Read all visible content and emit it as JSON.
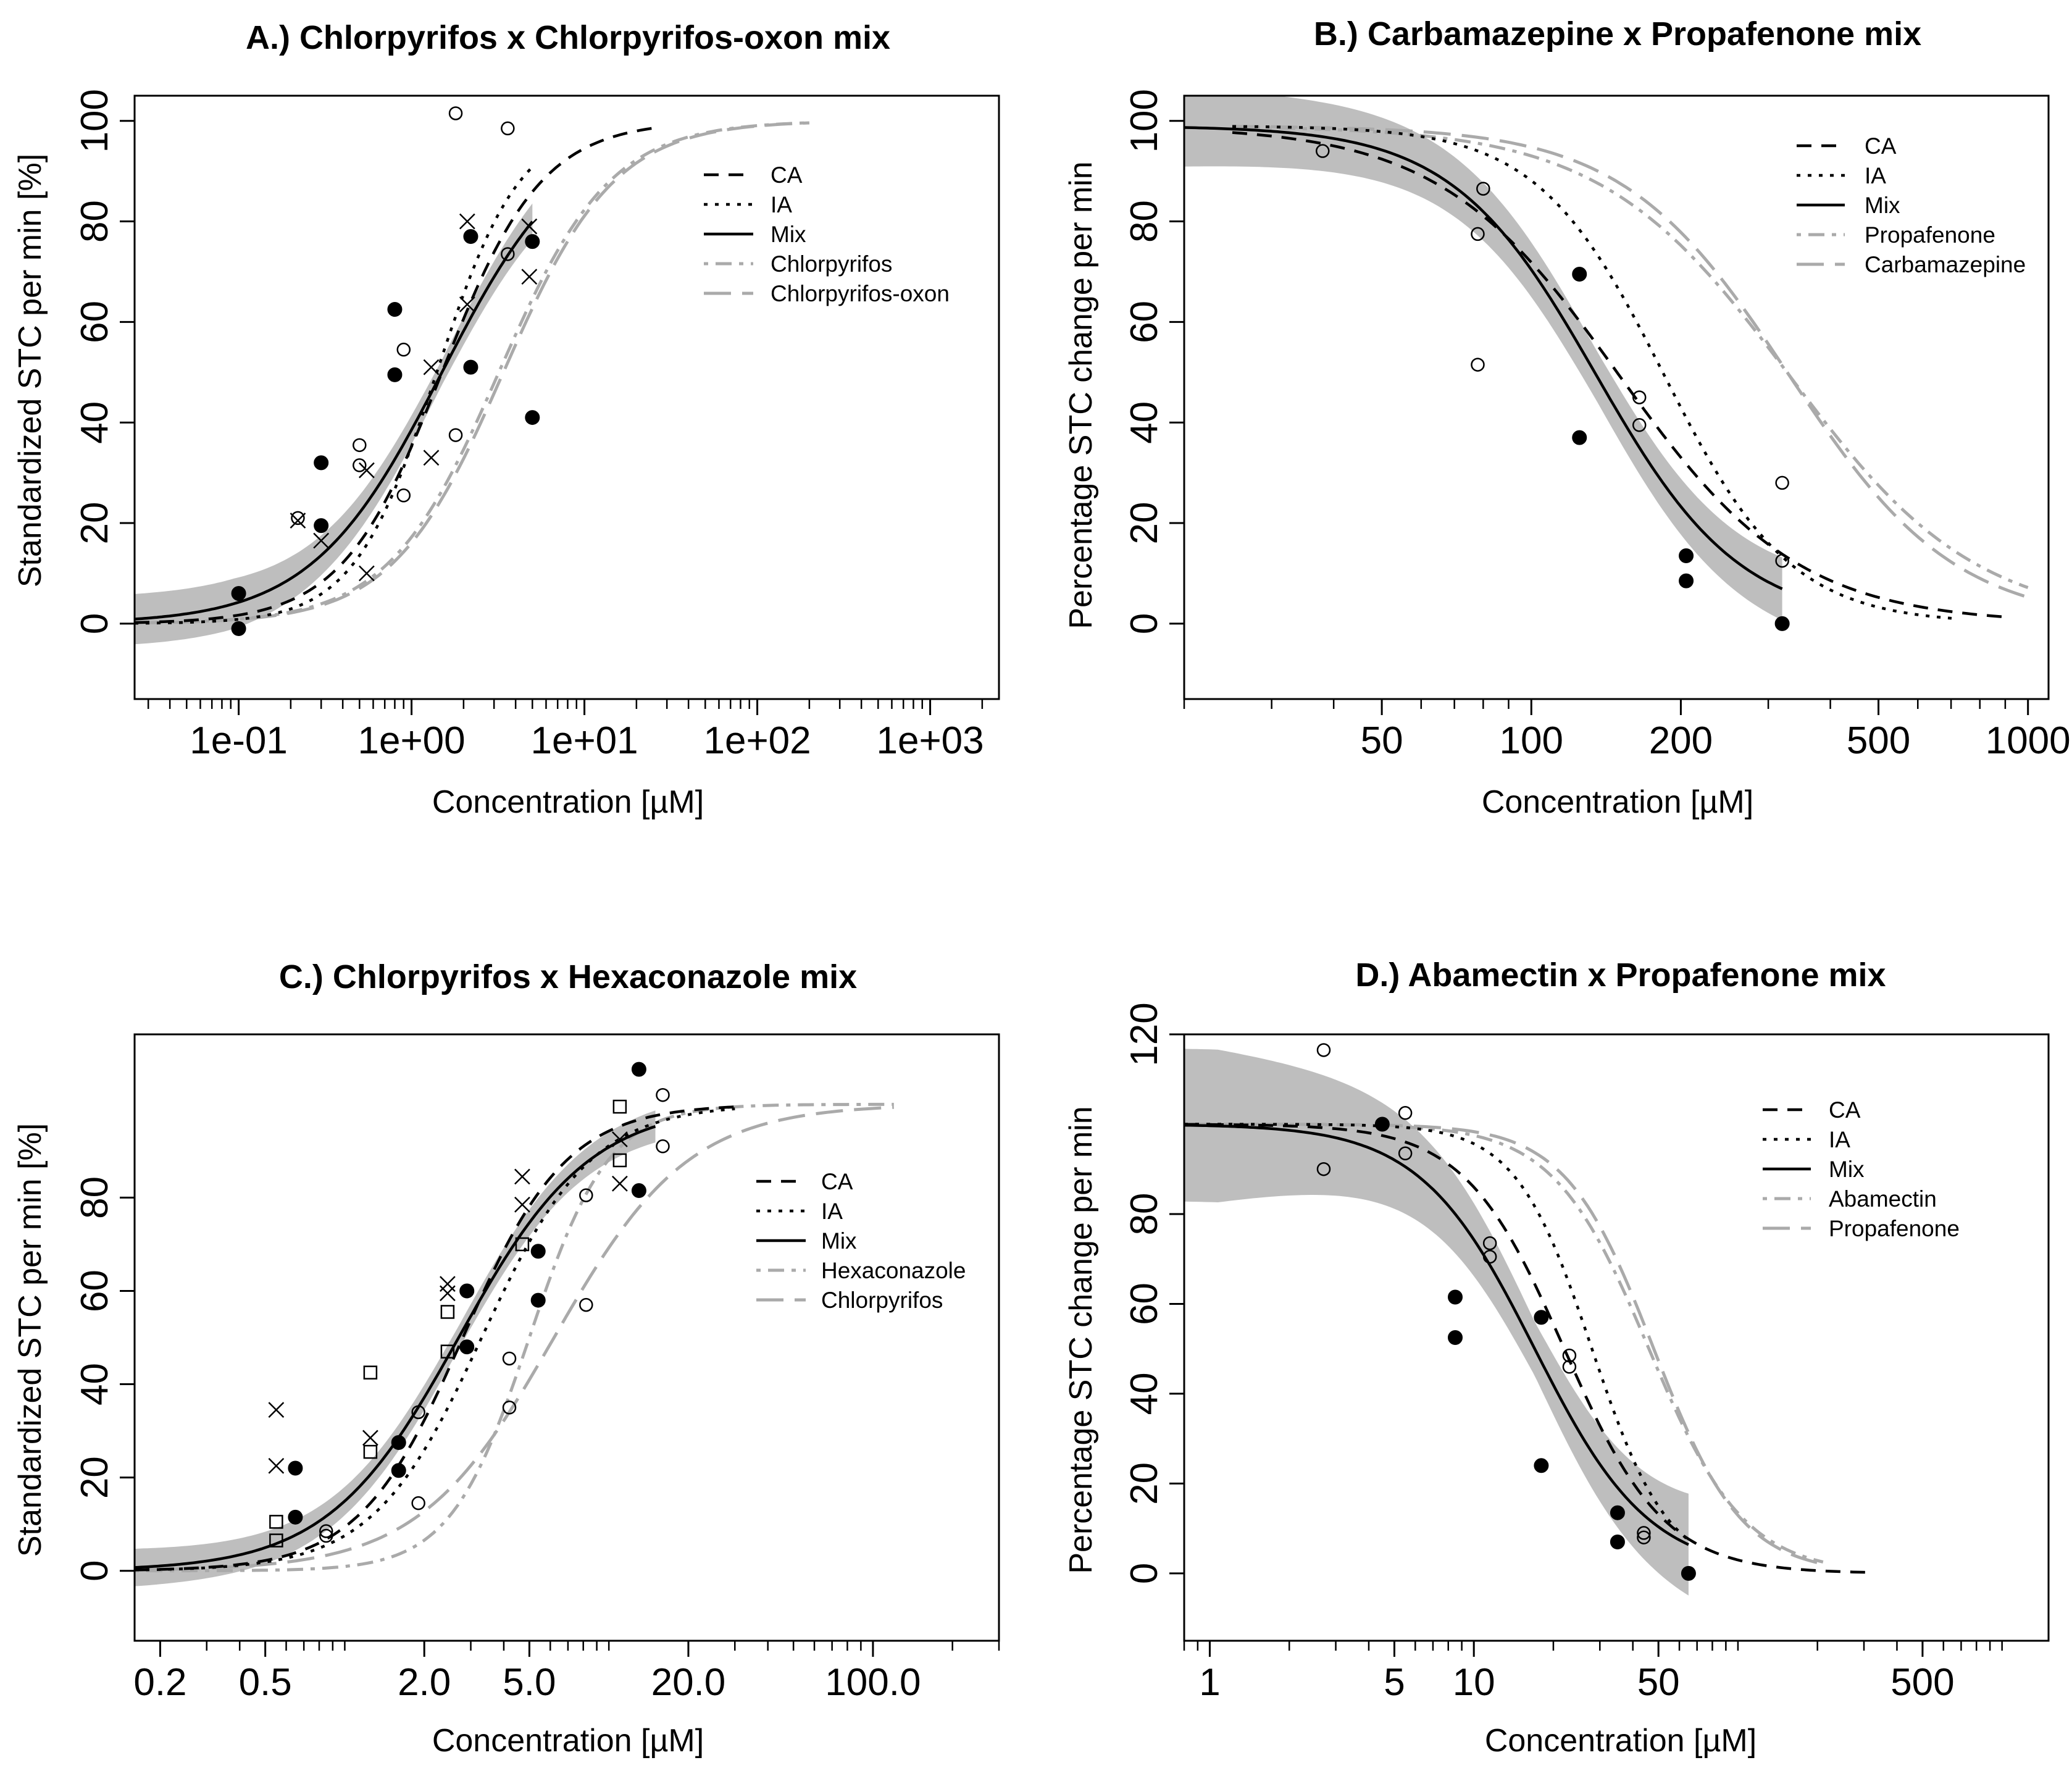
{
  "chart_data": [
    {
      "id": "A",
      "type": "line",
      "title": "A.) Chlorpyrifos x Chlorpyrifos-oxon mix",
      "xlabel": "Concentration [µM]",
      "ylabel": "Standardized STC per min [%]",
      "xscale": "log",
      "xlim": [
        0.025,
        2500
      ],
      "ylim": [
        -15,
        105
      ],
      "xticks": [
        {
          "v": 0.1,
          "label": "1e-01"
        },
        {
          "v": 1,
          "label": "1e+00"
        },
        {
          "v": 10,
          "label": "1e+01"
        },
        {
          "v": 100,
          "label": "1e+02"
        },
        {
          "v": 1000,
          "label": "1e+03"
        }
      ],
      "yticks": [
        {
          "v": 0,
          "label": "0"
        },
        {
          "v": 20,
          "label": "20"
        },
        {
          "v": 40,
          "label": "40"
        },
        {
          "v": 60,
          "label": "60"
        },
        {
          "v": 80,
          "label": "80"
        },
        {
          "v": 100,
          "label": "100"
        }
      ],
      "legend_position": "top-right",
      "legend": [
        {
          "label": "CA",
          "style": "dashed",
          "color": "#000000"
        },
        {
          "label": "IA",
          "style": "dotted",
          "color": "#000000"
        },
        {
          "label": "Mix",
          "style": "solid",
          "color": "#000000"
        },
        {
          "label": "Chlorpyrifos",
          "style": "dotdash",
          "color": "#aaaaaa"
        },
        {
          "label": "Chlorpyrifos-oxon",
          "style": "longdash",
          "color": "#aaaaaa"
        }
      ],
      "direction": "increasing",
      "band": {
        "ec50": 1.5,
        "top": 100,
        "hill": 1.15,
        "xmin": 0.025,
        "xmax": 5.0,
        "width_at_ends": 5,
        "width_mid": 2.5
      },
      "curves": [
        {
          "name": "Mix",
          "style": "solid",
          "color": "#000000",
          "ec50": 1.5,
          "hill": 1.15,
          "top": 100,
          "xmin": 0.025,
          "xmax": 5.0
        },
        {
          "name": "CA",
          "style": "dashed",
          "color": "#000000",
          "ec50": 1.5,
          "hill": 1.5,
          "top": 100,
          "xmin": 0.025,
          "xmax": 25
        },
        {
          "name": "IA",
          "style": "dotted",
          "color": "#000000",
          "ec50": 1.4,
          "hill": 1.8,
          "top": 100,
          "xmin": 0.025,
          "xmax": 5.0
        },
        {
          "name": "Chlorpyrifos",
          "style": "dotdash",
          "color": "#aaaaaa",
          "ec50": 3.2,
          "hill": 1.35,
          "top": 100,
          "xmin": 0.025,
          "xmax": 200
        },
        {
          "name": "Chlorpyrifos-oxon",
          "style": "longdash",
          "color": "#aaaaaa",
          "ec50": 3.4,
          "hill": 1.35,
          "top": 100,
          "xmin": 0.025,
          "xmax": 200
        }
      ],
      "points": [
        {
          "marker": "filled",
          "data": [
            [
              0.1,
              -1
            ],
            [
              0.1,
              6
            ],
            [
              0.3,
              32
            ],
            [
              0.3,
              19.5
            ],
            [
              0.8,
              62.5
            ],
            [
              0.8,
              49.5
            ],
            [
              2.2,
              77
            ],
            [
              2.2,
              51
            ],
            [
              5,
              76
            ],
            [
              5,
              41
            ]
          ]
        },
        {
          "marker": "open",
          "data": [
            [
              0.22,
              21
            ],
            [
              0.5,
              35.5
            ],
            [
              0.5,
              31.5
            ],
            [
              0.9,
              54.5
            ],
            [
              0.9,
              25.5
            ],
            [
              1.8,
              101.5
            ],
            [
              1.8,
              37.5
            ],
            [
              3.6,
              98.5
            ],
            [
              3.6,
              73.5
            ]
          ]
        },
        {
          "marker": "cross",
          "data": [
            [
              0.22,
              20.5
            ],
            [
              0.3,
              16.5
            ],
            [
              0.55,
              30.5
            ],
            [
              0.55,
              10
            ],
            [
              1.3,
              51
            ],
            [
              1.3,
              33
            ],
            [
              2.1,
              80
            ],
            [
              2.1,
              63.5
            ],
            [
              4.8,
              79
            ],
            [
              4.8,
              69
            ]
          ]
        }
      ]
    },
    {
      "id": "B",
      "type": "line",
      "title": "B.) Carbamazepine x Propafenone mix",
      "xlabel": "Concentration [µM]",
      "ylabel": "Percentage STC change per min",
      "xscale": "log",
      "xlim": [
        20,
        1100
      ],
      "ylim": [
        -15,
        105
      ],
      "xticks": [
        {
          "v": 50,
          "label": "50"
        },
        {
          "v": 100,
          "label": "100"
        },
        {
          "v": 200,
          "label": "200"
        },
        {
          "v": 500,
          "label": "500"
        },
        {
          "v": 1000,
          "label": "1000"
        }
      ],
      "yticks": [
        {
          "v": 0,
          "label": "0"
        },
        {
          "v": 20,
          "label": "20"
        },
        {
          "v": 40,
          "label": "40"
        },
        {
          "v": 60,
          "label": "60"
        },
        {
          "v": 80,
          "label": "80"
        },
        {
          "v": 100,
          "label": "100"
        }
      ],
      "legend_position": "top-right",
      "legend": [
        {
          "label": "CA",
          "style": "dashed",
          "color": "#000000"
        },
        {
          "label": "IA",
          "style": "dotted",
          "color": "#000000"
        },
        {
          "label": "Mix",
          "style": "solid",
          "color": "#000000"
        },
        {
          "label": "Propafenone",
          "style": "dotdash",
          "color": "#aaaaaa"
        },
        {
          "label": "Carbamazepine",
          "style": "longdash",
          "color": "#aaaaaa"
        }
      ],
      "direction": "decreasing",
      "band": {
        "ec50": 135,
        "top": 99,
        "hill": 3.0,
        "xmin": 20,
        "xmax": 320,
        "width_at_ends": 9,
        "width_mid": 5
      },
      "curves": [
        {
          "name": "Mix",
          "style": "solid",
          "color": "#000000",
          "ec50": 135,
          "hill": 3.0,
          "top": 99,
          "xmin": 20,
          "xmax": 320
        },
        {
          "name": "CA",
          "style": "dashed",
          "color": "#000000",
          "ec50": 150,
          "hill": 2.4,
          "top": 99,
          "xmin": 25,
          "xmax": 900
        },
        {
          "name": "IA",
          "style": "dotted",
          "color": "#000000",
          "ec50": 185,
          "hill": 3.4,
          "top": 99,
          "xmin": 25,
          "xmax": 720
        },
        {
          "name": "Propafenone",
          "style": "dotdash",
          "color": "#aaaaaa",
          "ec50": 330,
          "hill": 2.3,
          "top": 99,
          "xmin": 25,
          "xmax": 1000
        },
        {
          "name": "Carbamazepine",
          "style": "longdash",
          "color": "#aaaaaa",
          "ec50": 330,
          "hill": 2.6,
          "top": 99,
          "xmin": 25,
          "xmax": 1000
        }
      ],
      "points": [
        {
          "marker": "filled",
          "data": [
            [
              125,
              69.5
            ],
            [
              125,
              37
            ],
            [
              205,
              13.5
            ],
            [
              205,
              8.5
            ],
            [
              320,
              0
            ]
          ]
        },
        {
          "marker": "open",
          "data": [
            [
              38,
              94
            ],
            [
              80,
              86.5
            ],
            [
              78,
              77.5
            ],
            [
              78,
              51.5
            ],
            [
              165,
              45
            ],
            [
              165,
              39.5
            ],
            [
              320,
              28
            ],
            [
              320,
              12.5
            ]
          ]
        }
      ]
    },
    {
      "id": "C",
      "type": "line",
      "title": "C.) Chlorpyrifos x Hexaconazole mix",
      "xlabel": "Concentration [µM]",
      "ylabel": "Standardized STC per min [%]",
      "xscale": "log",
      "xlim": [
        0.16,
        300
      ],
      "ylim": [
        -15,
        115
      ],
      "xticks": [
        {
          "v": 0.2,
          "label": "0.2"
        },
        {
          "v": 0.5,
          "label": "0.5"
        },
        {
          "v": 2,
          "label": "2.0"
        },
        {
          "v": 5,
          "label": "5.0"
        },
        {
          "v": 20,
          "label": "20.0"
        },
        {
          "v": 100,
          "label": "100.0"
        }
      ],
      "yticks": [
        {
          "v": 0,
          "label": "0"
        },
        {
          "v": 20,
          "label": "20"
        },
        {
          "v": 40,
          "label": "40"
        },
        {
          "v": 60,
          "label": "60"
        },
        {
          "v": 80,
          "label": "80"
        }
      ],
      "legend_position": "right",
      "legend": [
        {
          "label": "CA",
          "style": "dashed",
          "color": "#000000"
        },
        {
          "label": "IA",
          "style": "dotted",
          "color": "#000000"
        },
        {
          "label": "Mix",
          "style": "solid",
          "color": "#000000"
        },
        {
          "label": "Hexaconazole",
          "style": "dotdash",
          "color": "#aaaaaa"
        },
        {
          "label": "Chlorpyrifos",
          "style": "longdash",
          "color": "#aaaaaa"
        }
      ],
      "direction": "increasing",
      "band": {
        "ec50": 2.7,
        "top": 100,
        "hill": 1.75,
        "xmin": 0.16,
        "xmax": 15,
        "width_at_ends": 4,
        "width_mid": 2.5
      },
      "curves": [
        {
          "name": "Mix",
          "style": "solid",
          "color": "#000000",
          "ec50": 2.7,
          "hill": 1.75,
          "top": 100,
          "xmin": 0.16,
          "xmax": 15
        },
        {
          "name": "CA",
          "style": "dashed",
          "color": "#000000",
          "ec50": 2.8,
          "hill": 2.2,
          "top": 100,
          "xmin": 0.16,
          "xmax": 30
        },
        {
          "name": "IA",
          "style": "dotted",
          "color": "#000000",
          "ec50": 3.3,
          "hill": 2.1,
          "top": 100,
          "xmin": 0.16,
          "xmax": 30
        },
        {
          "name": "Hexaconazole",
          "style": "dotdash",
          "color": "#aaaaaa",
          "ec50": 5.0,
          "hill": 2.9,
          "top": 100,
          "xmin": 0.16,
          "xmax": 120
        },
        {
          "name": "Chlorpyrifos",
          "style": "longdash",
          "color": "#aaaaaa",
          "ec50": 6.2,
          "hill": 1.7,
          "top": 100,
          "xmin": 0.16,
          "xmax": 120
        }
      ],
      "points": [
        {
          "marker": "filled",
          "data": [
            [
              0.65,
              22
            ],
            [
              0.65,
              11.5
            ],
            [
              1.6,
              27.5
            ],
            [
              1.6,
              21.5
            ],
            [
              2.9,
              60
            ],
            [
              2.9,
              48
            ],
            [
              5.4,
              68.5
            ],
            [
              5.4,
              58
            ],
            [
              13,
              107.5
            ],
            [
              13,
              81.5
            ]
          ]
        },
        {
          "marker": "open",
          "data": [
            [
              0.85,
              7.5
            ],
            [
              0.85,
              8.5
            ],
            [
              1.9,
              34
            ],
            [
              1.9,
              14.5
            ],
            [
              4.2,
              45.5
            ],
            [
              4.2,
              35
            ],
            [
              8.2,
              80.5
            ],
            [
              8.2,
              57
            ],
            [
              16,
              102
            ],
            [
              16,
              91
            ]
          ]
        },
        {
          "marker": "cross",
          "data": [
            [
              0.55,
              34.5
            ],
            [
              0.55,
              22.5
            ],
            [
              1.25,
              28.5
            ],
            [
              2.45,
              61.5
            ],
            [
              2.45,
              59.5
            ],
            [
              4.7,
              84.5
            ],
            [
              4.7,
              78.5
            ],
            [
              11,
              92.5
            ],
            [
              11,
              83
            ]
          ]
        },
        {
          "marker": "square",
          "data": [
            [
              0.55,
              10.5
            ],
            [
              0.55,
              6.5
            ],
            [
              1.25,
              42.5
            ],
            [
              1.25,
              25.5
            ],
            [
              2.45,
              55.5
            ],
            [
              2.45,
              47
            ],
            [
              4.7,
              70
            ],
            [
              11,
              99.5
            ],
            [
              11,
              88
            ]
          ]
        }
      ]
    },
    {
      "id": "D",
      "type": "line",
      "title": "D.) Abamectin x Propafenone mix",
      "xlabel": "Concentration [µM]",
      "ylabel": "Percentage STC change per min",
      "xscale": "log",
      "xlim": [
        0.8,
        1500
      ],
      "ylim": [
        -15,
        120
      ],
      "xticks": [
        {
          "v": 1,
          "label": "1"
        },
        {
          "v": 5,
          "label": "5"
        },
        {
          "v": 10,
          "label": "10"
        },
        {
          "v": 50,
          "label": "50"
        },
        {
          "v": 500,
          "label": "500"
        }
      ],
      "yticks": [
        {
          "v": 0,
          "label": "0"
        },
        {
          "v": 20,
          "label": "20"
        },
        {
          "v": 40,
          "label": "40"
        },
        {
          "v": 60,
          "label": "60"
        },
        {
          "v": 80,
          "label": "80"
        },
        {
          "v": 120,
          "label": "120"
        }
      ],
      "legend_position": "top-right",
      "legend": [
        {
          "label": "CA",
          "style": "dashed",
          "color": "#000000"
        },
        {
          "label": "IA",
          "style": "dotted",
          "color": "#000000"
        },
        {
          "label": "Mix",
          "style": "solid",
          "color": "#000000"
        },
        {
          "label": "Abamectin",
          "style": "dotdash",
          "color": "#aaaaaa"
        },
        {
          "label": "Propafenone",
          "style": "longdash",
          "color": "#aaaaaa"
        }
      ],
      "direction": "decreasing",
      "band": {
        "ec50": 17,
        "top": 100,
        "hill": 2.0,
        "xmin": 0.8,
        "xmax": 65,
        "width_at_ends": 17,
        "width_mid": 6
      },
      "curves": [
        {
          "name": "Mix",
          "style": "solid",
          "color": "#000000",
          "ec50": 17,
          "hill": 2.0,
          "top": 100,
          "xmin": 0.8,
          "xmax": 65
        },
        {
          "name": "CA",
          "style": "dashed",
          "color": "#000000",
          "ec50": 22,
          "hill": 2.3,
          "top": 100,
          "xmin": 0.8,
          "xmax": 330
        },
        {
          "name": "IA",
          "style": "dotted",
          "color": "#000000",
          "ec50": 28,
          "hill": 3.0,
          "top": 100,
          "xmin": 0.8,
          "xmax": 65
        },
        {
          "name": "Abamectin",
          "style": "dotdash",
          "color": "#aaaaaa",
          "ec50": 46,
          "hill": 2.4,
          "top": 100,
          "xmin": 0.8,
          "xmax": 210
        },
        {
          "name": "Propafenone",
          "style": "longdash",
          "color": "#aaaaaa",
          "ec50": 48,
          "hill": 2.6,
          "top": 100,
          "xmin": 0.8,
          "xmax": 210
        }
      ],
      "points": [
        {
          "marker": "filled",
          "data": [
            [
              4.5,
              100
            ],
            [
              8.5,
              61.5
            ],
            [
              8.5,
              52.5
            ],
            [
              18,
              57
            ],
            [
              18,
              24
            ],
            [
              35,
              13.5
            ],
            [
              35,
              7
            ],
            [
              65,
              0
            ]
          ]
        },
        {
          "marker": "open",
          "data": [
            [
              2.7,
              116.5
            ],
            [
              2.7,
              90
            ],
            [
              5.5,
              102.5
            ],
            [
              5.5,
              93.5
            ],
            [
              11.5,
              73.5
            ],
            [
              11.5,
              70.5
            ],
            [
              23,
              48.5
            ],
            [
              23,
              46
            ],
            [
              44,
              9
            ],
            [
              44,
              8
            ]
          ]
        }
      ]
    }
  ]
}
